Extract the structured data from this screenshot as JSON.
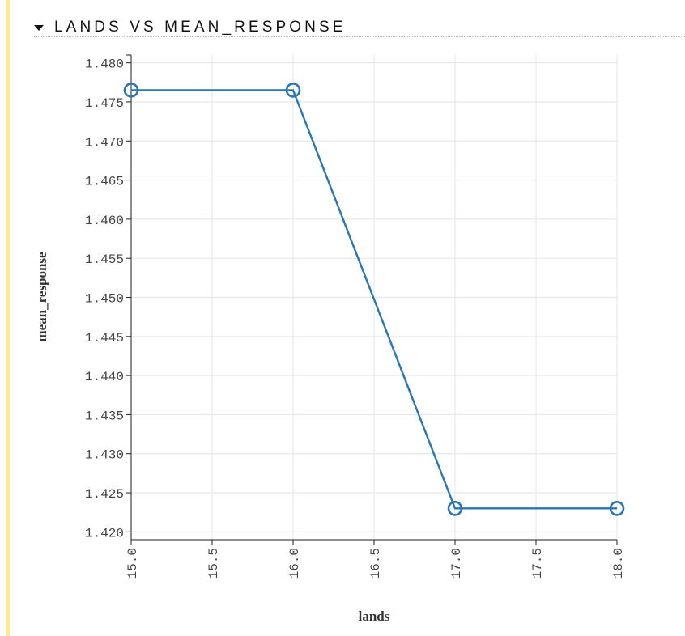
{
  "section": {
    "title": "LANDS VS MEAN_RESPONSE"
  },
  "colors": {
    "line": "#2a76b2",
    "grid": "#e8e8e8",
    "axis": "#222222",
    "accent_bar": "#f7ee8f"
  },
  "chart_data": {
    "type": "line",
    "x": [
      15.0,
      16.0,
      17.0,
      18.0
    ],
    "series": [
      {
        "values": [
          1.4765,
          1.4765,
          1.423,
          1.423
        ]
      }
    ],
    "markers": "open-circle",
    "xlabel": "lands",
    "ylabel": "mean_response",
    "xlim": [
      15.0,
      18.0
    ],
    "ylim": [
      1.419,
      1.481
    ],
    "x_ticks": [
      "15.0",
      "15.5",
      "16.0",
      "16.5",
      "17.0",
      "17.5",
      "18.0"
    ],
    "y_ticks": [
      "1.420",
      "1.425",
      "1.430",
      "1.435",
      "1.440",
      "1.445",
      "1.450",
      "1.455",
      "1.460",
      "1.465",
      "1.470",
      "1.475",
      "1.480"
    ],
    "grid": true
  }
}
